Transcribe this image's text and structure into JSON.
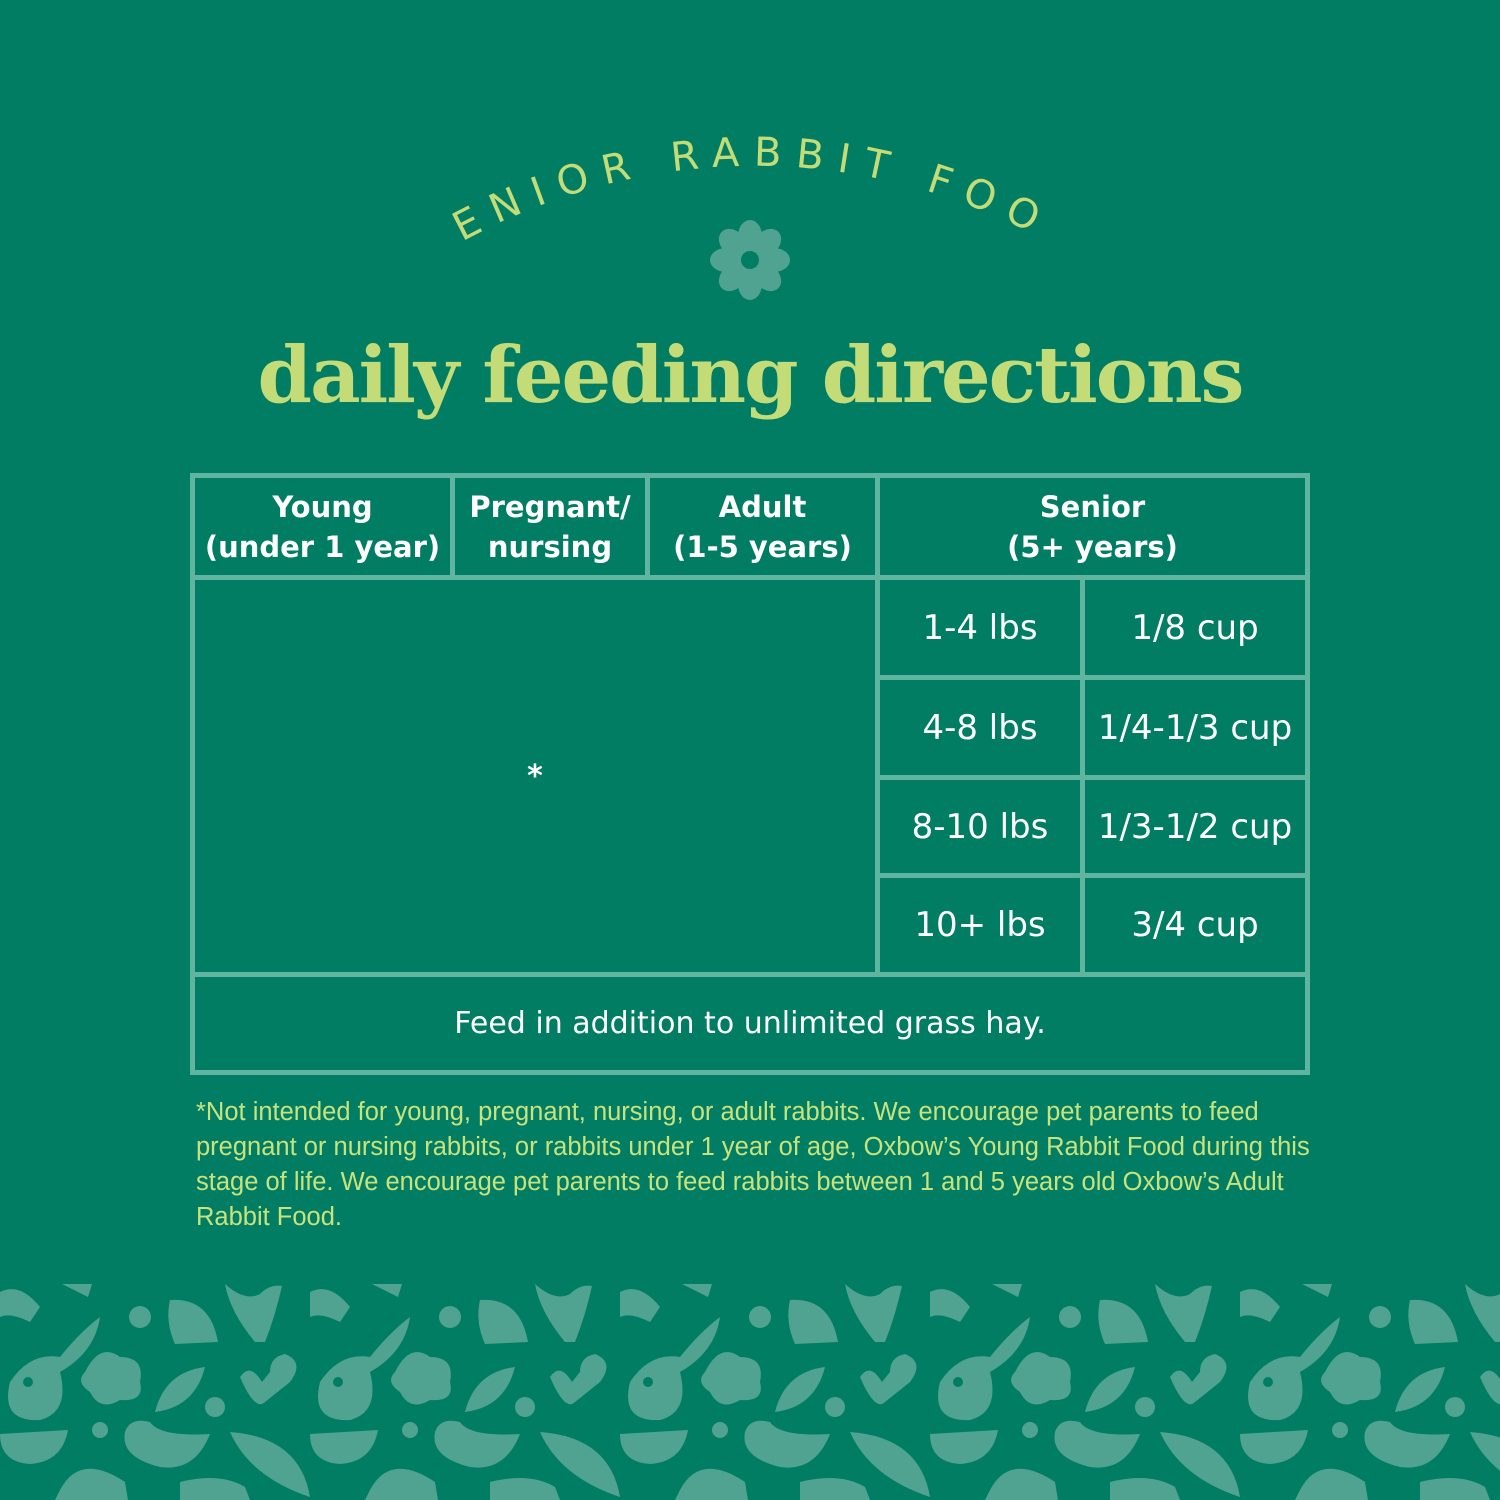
{
  "header": {
    "arc_title": "SENIOR RABBIT FOOD",
    "title": "daily feeding directions",
    "flower_icon": "flower-icon"
  },
  "table": {
    "headers": [
      "Young\n(under 1 year)",
      "Pregnant/\nnursing",
      "Adult\n(1-5 years)",
      "Senior\n(5+ years)"
    ],
    "merged_cell": "*",
    "senior_rows": [
      {
        "weight": "1-4 lbs",
        "amount": "1/8 cup"
      },
      {
        "weight": "4-8 lbs",
        "amount": "1/4-1/3 cup"
      },
      {
        "weight": "8-10 lbs",
        "amount": "1/3-1/2 cup"
      },
      {
        "weight": "10+ lbs",
        "amount": "3/4 cup"
      }
    ],
    "footer": "Feed in addition to unlimited grass hay."
  },
  "footnote": "*Not intended for young, pregnant, nursing, or adult rabbits. We encourage pet parents to feed pregnant or nursing rabbits, or rabbits under 1 year of age, Oxbow’s Young Rabbit Food during this stage of life. We encourage pet parents to feed rabbits between 1 and 5 years old Oxbow’s Adult Rabbit Food.",
  "colors": {
    "background": "#007d63",
    "title": "#c4dc78",
    "border": "#5fb5a0",
    "pattern": "#4fa390"
  }
}
